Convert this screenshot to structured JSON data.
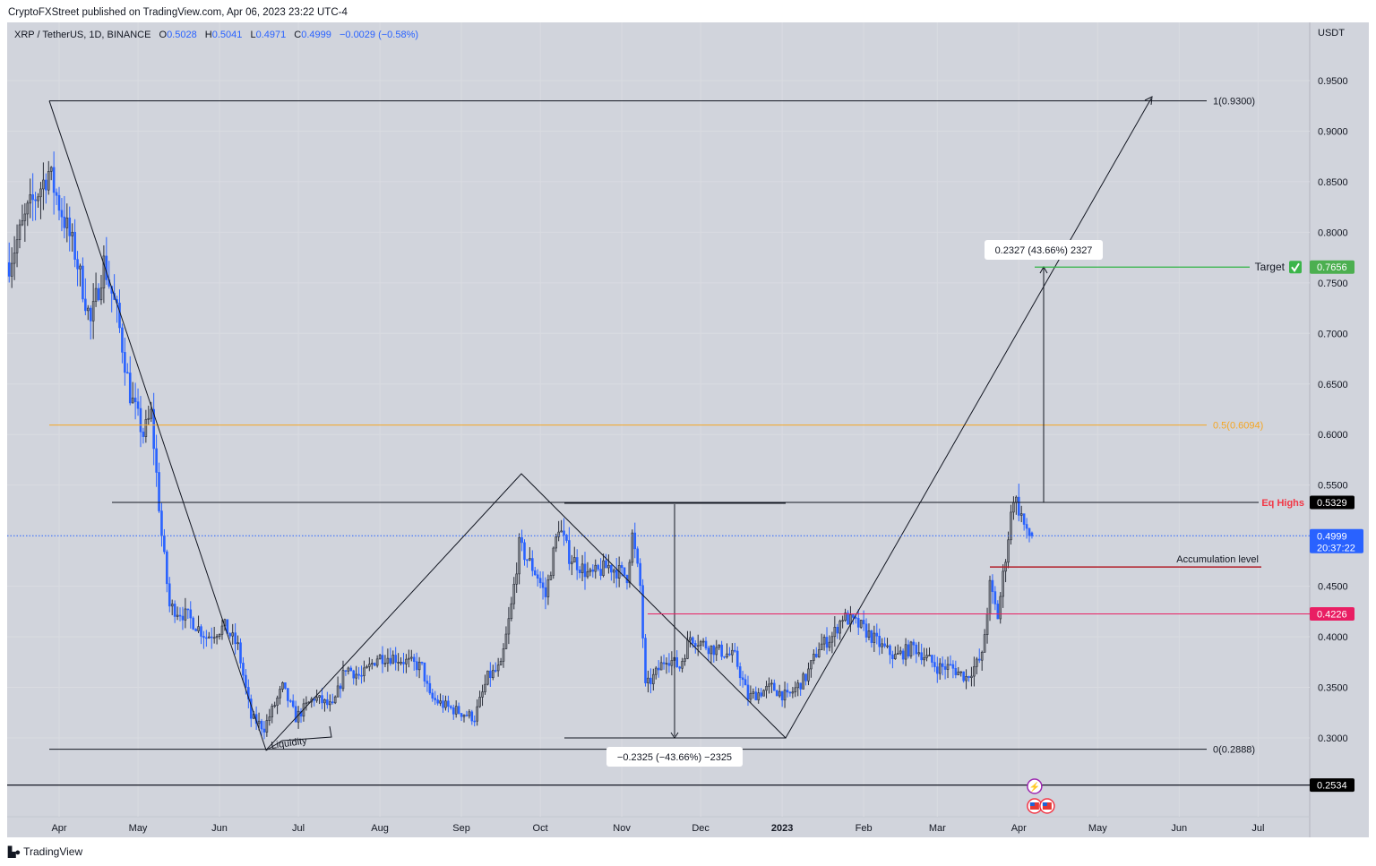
{
  "header": {
    "publisher": "CryptoFXStreet published on TradingView.com, Apr 06, 2023 23:22 UTC-4",
    "symbol": "XRP / TetherUS, 1D, BINANCE",
    "o_label": "O",
    "o": "0.5028",
    "h_label": "H",
    "h": "0.5041",
    "l_label": "L",
    "l": "0.4971",
    "c_label": "C",
    "c": "0.4999",
    "change": "−0.0029 (−0.58%)"
  },
  "footer": {
    "logo": "TradingView"
  },
  "colors": {
    "background": "#d1d4dc",
    "up_candle": "#8a8d94",
    "down_candle": "#2962ff",
    "target": "#2fb344",
    "eq_highs": "#f23645",
    "fib_half": "#f5a623",
    "level_pink": "#e91e63",
    "current_price": "#2962ff"
  },
  "chart_data": {
    "type": "candlestick",
    "title": "XRP / TetherUS, 1D, BINANCE",
    "ylabel": "USDT",
    "ylim": [
      0.23,
      0.975
    ],
    "xlim": [
      "2022-03-12",
      "2023-07-25"
    ],
    "y_ticks": [
      "0.9500",
      "0.9000",
      "0.8500",
      "0.8000",
      "0.7500",
      "0.7000",
      "0.6500",
      "0.6000",
      "0.5500",
      "0.4500",
      "0.4000",
      "0.3500",
      "0.3000"
    ],
    "x_ticks": [
      {
        "date": "2022-04-01",
        "label": "Apr"
      },
      {
        "date": "2022-05-01",
        "label": "May"
      },
      {
        "date": "2022-06-01",
        "label": "Jun"
      },
      {
        "date": "2022-07-01",
        "label": "Jul"
      },
      {
        "date": "2022-08-01",
        "label": "Aug"
      },
      {
        "date": "2022-09-01",
        "label": "Sep"
      },
      {
        "date": "2022-10-01",
        "label": "Oct"
      },
      {
        "date": "2022-11-01",
        "label": "Nov"
      },
      {
        "date": "2022-12-01",
        "label": "Dec"
      },
      {
        "date": "2023-01-01",
        "label": "2023",
        "bold": true
      },
      {
        "date": "2023-02-01",
        "label": "Feb"
      },
      {
        "date": "2023-03-01",
        "label": "Mar"
      },
      {
        "date": "2023-04-01",
        "label": "Apr"
      },
      {
        "date": "2023-05-01",
        "label": "May"
      },
      {
        "date": "2023-06-01",
        "label": "Jun"
      },
      {
        "date": "2023-07-01",
        "label": "Jul"
      }
    ],
    "approx_closes": [
      [
        "2022-03-13",
        0.77
      ],
      [
        "2022-03-20",
        0.82
      ],
      [
        "2022-03-28",
        0.86
      ],
      [
        "2022-04-02",
        0.82
      ],
      [
        "2022-04-07",
        0.78
      ],
      [
        "2022-04-13",
        0.71
      ],
      [
        "2022-04-18",
        0.77
      ],
      [
        "2022-04-23",
        0.72
      ],
      [
        "2022-04-28",
        0.64
      ],
      [
        "2022-05-03",
        0.6
      ],
      [
        "2022-05-06",
        0.62
      ],
      [
        "2022-05-10",
        0.5
      ],
      [
        "2022-05-13",
        0.43
      ],
      [
        "2022-05-20",
        0.42
      ],
      [
        "2022-05-27",
        0.4
      ],
      [
        "2022-06-03",
        0.41
      ],
      [
        "2022-06-08",
        0.39
      ],
      [
        "2022-06-13",
        0.32
      ],
      [
        "2022-06-18",
        0.31
      ],
      [
        "2022-06-25",
        0.35
      ],
      [
        "2022-06-30",
        0.32
      ],
      [
        "2022-07-07",
        0.34
      ],
      [
        "2022-07-14",
        0.33
      ],
      [
        "2022-07-19",
        0.37
      ],
      [
        "2022-07-25",
        0.36
      ],
      [
        "2022-07-31",
        0.38
      ],
      [
        "2022-08-06",
        0.38
      ],
      [
        "2022-08-17",
        0.37
      ],
      [
        "2022-08-20",
        0.34
      ],
      [
        "2022-08-27",
        0.33
      ],
      [
        "2022-09-06",
        0.32
      ],
      [
        "2022-09-11",
        0.36
      ],
      [
        "2022-09-16",
        0.37
      ],
      [
        "2022-09-20",
        0.43
      ],
      [
        "2022-09-23",
        0.49
      ],
      [
        "2022-09-30",
        0.46
      ],
      [
        "2022-10-03",
        0.44
      ],
      [
        "2022-10-08",
        0.51
      ],
      [
        "2022-10-12",
        0.48
      ],
      [
        "2022-10-20",
        0.46
      ],
      [
        "2022-10-27",
        0.47
      ],
      [
        "2022-11-03",
        0.46
      ],
      [
        "2022-11-05",
        0.5
      ],
      [
        "2022-11-08",
        0.45
      ],
      [
        "2022-11-10",
        0.35
      ],
      [
        "2022-11-13",
        0.36
      ],
      [
        "2022-11-18",
        0.38
      ],
      [
        "2022-11-23",
        0.37
      ],
      [
        "2022-11-27",
        0.4
      ],
      [
        "2022-12-04",
        0.39
      ],
      [
        "2022-12-14",
        0.38
      ],
      [
        "2022-12-19",
        0.34
      ],
      [
        "2022-12-28",
        0.35
      ],
      [
        "2023-01-03",
        0.34
      ],
      [
        "2023-01-10",
        0.36
      ],
      [
        "2023-01-15",
        0.39
      ],
      [
        "2023-01-20",
        0.4
      ],
      [
        "2023-01-24",
        0.42
      ],
      [
        "2023-01-31",
        0.41
      ],
      [
        "2023-02-08",
        0.39
      ],
      [
        "2023-02-13",
        0.38
      ],
      [
        "2023-02-20",
        0.39
      ],
      [
        "2023-03-01",
        0.37
      ],
      [
        "2023-03-06",
        0.37
      ],
      [
        "2023-03-12",
        0.36
      ],
      [
        "2023-03-18",
        0.38
      ],
      [
        "2023-03-21",
        0.45
      ],
      [
        "2023-03-24",
        0.42
      ],
      [
        "2023-03-28",
        0.5
      ],
      [
        "2023-03-30",
        0.54
      ],
      [
        "2023-04-02",
        0.52
      ],
      [
        "2023-04-04",
        0.5
      ],
      [
        "2023-04-06",
        0.4999
      ]
    ],
    "last_candle": {
      "date": "2023-04-06",
      "open": 0.5028,
      "high": 0.5041,
      "low": 0.4971,
      "close": 0.4999
    },
    "annotations": {
      "fib_1": "1(0.9300)",
      "fib_1_value": 0.93,
      "fib_half": "0.5(0.6094)",
      "fib_half_value": 0.6094,
      "fib_0": "0(0.2888)",
      "fib_0_value": 0.2888,
      "eq_highs": "Eq Highs",
      "eq_highs_value": 0.5329,
      "eq_highs_tag": "0.5329",
      "current_price_tag": "0.4999",
      "countdown": "20:37:22",
      "current_price_value": 0.4999,
      "accumulation": "Accumulation level",
      "accumulation_value": 0.469,
      "level_pink_tag": "0.4226",
      "level_pink_value": 0.4226,
      "level_low_tag": "0.2534",
      "level_low_value": 0.2534,
      "target": "Target",
      "target_tag": "0.7656",
      "target_value": 0.7656,
      "target_icon": "check-mark-button-icon",
      "measure_up": "0.2327 (43.66%) 2327",
      "measure_down": "−0.2325 (−43.66%) −2325",
      "liquidity": "Liquidity",
      "event_icons": [
        "lightning-icon",
        "us-flag-icon",
        "us-flag-icon"
      ]
    }
  }
}
